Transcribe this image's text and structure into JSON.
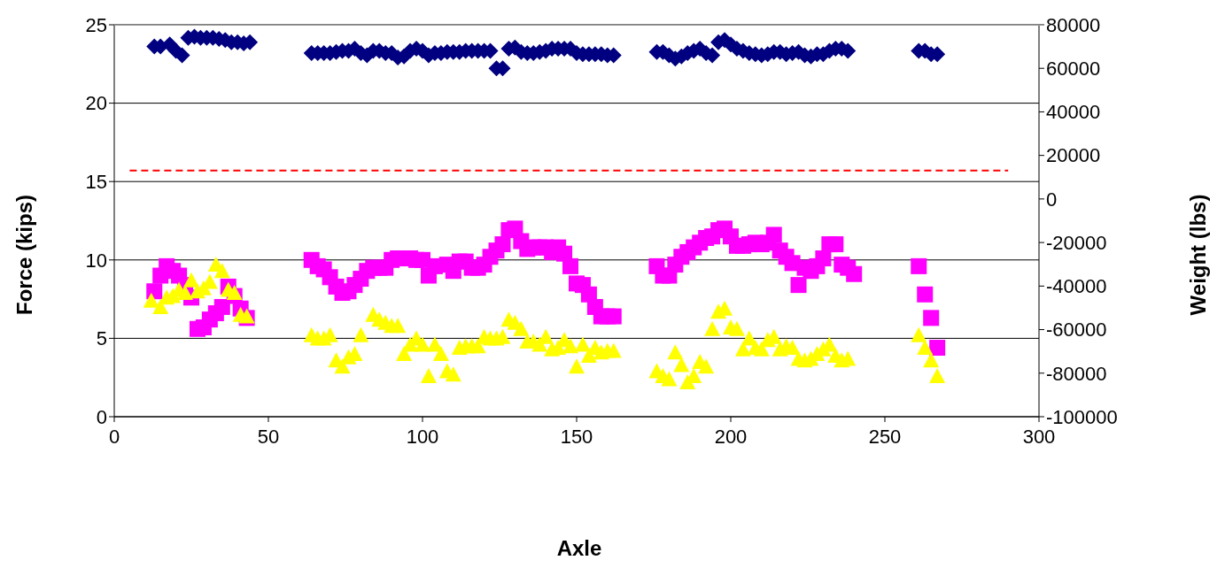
{
  "chart_data": {
    "type": "scatter",
    "xlabel": "Axle",
    "ylabel": "Force (kips)",
    "y2label": "Weight (lbs)",
    "xlim": [
      0,
      300
    ],
    "xticks": [
      0,
      50,
      100,
      150,
      200,
      250,
      300
    ],
    "ylim": [
      0,
      25
    ],
    "yticks": [
      0,
      5,
      10,
      15,
      20,
      25
    ],
    "y2lim": [
      -100000,
      80000
    ],
    "y2ticks": [
      -100000,
      -80000,
      -60000,
      -40000,
      -20000,
      0,
      20000,
      40000,
      60000,
      80000
    ],
    "grid": "y",
    "series": [
      {
        "type": "scatter",
        "axis": "y2",
        "marker": "diamond",
        "color": "#000080",
        "x": [
          13,
          15,
          18,
          20,
          22,
          24,
          26,
          28,
          30,
          32,
          34,
          36,
          38,
          40,
          42,
          44,
          64,
          66,
          68,
          70,
          72,
          74,
          76,
          78,
          80,
          82,
          84,
          86,
          88,
          90,
          92,
          94,
          96,
          98,
          100,
          102,
          104,
          106,
          108,
          110,
          112,
          114,
          116,
          118,
          120,
          122,
          124,
          126,
          128,
          130,
          132,
          134,
          136,
          138,
          140,
          142,
          144,
          146,
          148,
          150,
          152,
          154,
          156,
          158,
          160,
          162,
          176,
          178,
          180,
          182,
          184,
          186,
          188,
          190,
          192,
          194,
          196,
          198,
          200,
          202,
          204,
          206,
          208,
          210,
          212,
          214,
          216,
          218,
          220,
          222,
          224,
          226,
          228,
          230,
          232,
          234,
          236,
          238,
          261,
          263,
          265,
          267
        ],
        "values": [
          70000,
          70000,
          71000,
          68000,
          66000,
          74000,
          74500,
          74000,
          74000,
          74000,
          73500,
          73000,
          72000,
          72000,
          71500,
          72000,
          67000,
          67000,
          67000,
          67000,
          67500,
          68000,
          68000,
          69000,
          67000,
          66000,
          68000,
          68000,
          67000,
          67000,
          65000,
          65500,
          68000,
          69000,
          68000,
          66000,
          67000,
          67000,
          67500,
          67500,
          67500,
          68000,
          68000,
          68000,
          68000,
          68000,
          60000,
          60000,
          69000,
          69500,
          67500,
          67000,
          67000,
          67500,
          68000,
          69000,
          69000,
          69000,
          69000,
          67000,
          66500,
          66500,
          66500,
          66500,
          66000,
          66000,
          67500,
          67500,
          66000,
          64500,
          65500,
          67000,
          68000,
          69000,
          67000,
          66000,
          72000,
          73000,
          71000,
          69000,
          68000,
          67000,
          66500,
          66000,
          66500,
          67500,
          67500,
          66500,
          67000,
          67500,
          66000,
          65500,
          66500,
          66500,
          68000,
          69000,
          69000,
          68000,
          68000,
          68000,
          66500,
          66500
        ]
      },
      {
        "type": "scatter",
        "marker": "square",
        "color": "#ff00ff",
        "x": [
          13,
          15,
          17,
          19,
          21,
          23,
          25,
          27,
          29,
          31,
          33,
          35,
          37,
          39,
          41,
          43,
          64,
          66,
          68,
          70,
          72,
          74,
          76,
          78,
          80,
          82,
          84,
          86,
          88,
          90,
          92,
          96,
          98,
          100,
          102,
          104,
          108,
          110,
          112,
          114,
          116,
          118,
          120,
          122,
          124,
          126,
          128,
          130,
          132,
          134,
          136,
          138,
          140,
          142,
          144,
          146,
          148,
          150,
          152,
          154,
          156,
          158,
          160,
          162,
          176,
          178,
          180,
          182,
          184,
          186,
          188,
          190,
          192,
          194,
          196,
          198,
          200,
          202,
          204,
          206,
          208,
          210,
          212,
          214,
          216,
          218,
          220,
          222,
          224,
          226,
          228,
          230,
          232,
          234,
          236,
          238,
          240,
          261,
          263,
          265,
          267
        ],
        "values": [
          8.0,
          9.0,
          9.6,
          9.3,
          9.0,
          8.4,
          7.6,
          5.6,
          5.7,
          6.2,
          6.6,
          7.0,
          8.3,
          7.7,
          6.9,
          6.3,
          10.0,
          9.6,
          9.4,
          8.9,
          8.3,
          7.9,
          8.0,
          8.4,
          8.8,
          9.3,
          9.5,
          9.5,
          9.5,
          10.0,
          10.1,
          10.1,
          10.0,
          10.0,
          9.0,
          9.6,
          9.7,
          9.3,
          9.9,
          9.9,
          9.5,
          9.5,
          9.7,
          10.2,
          10.6,
          11.0,
          11.9,
          12.0,
          11.2,
          10.7,
          10.8,
          10.8,
          10.8,
          10.5,
          10.8,
          10.4,
          9.6,
          8.5,
          8.4,
          7.8,
          7.0,
          6.4,
          6.4,
          6.4,
          9.6,
          9.0,
          9.0,
          9.7,
          10.2,
          10.5,
          10.8,
          11.1,
          11.4,
          11.5,
          11.9,
          12.0,
          11.5,
          10.9,
          10.9,
          11.0,
          11.1,
          11.0,
          11.1,
          11.6,
          10.6,
          10.2,
          9.8,
          8.4,
          9.5,
          9.3,
          9.6,
          10.1,
          11.0,
          11.0,
          9.7,
          9.5,
          9.1,
          9.6,
          7.8,
          6.3,
          4.4
        ]
      },
      {
        "type": "scatter",
        "marker": "triangle",
        "color": "#ffff00",
        "x": [
          12,
          15,
          17,
          19,
          21,
          23,
          25,
          27,
          29,
          31,
          33,
          35,
          37,
          39,
          41,
          43,
          64,
          66,
          68,
          70,
          72,
          74,
          76,
          78,
          80,
          84,
          86,
          88,
          90,
          92,
          94,
          96,
          98,
          100,
          102,
          104,
          106,
          108,
          110,
          112,
          114,
          116,
          118,
          120,
          122,
          124,
          126,
          128,
          130,
          132,
          134,
          136,
          138,
          140,
          142,
          144,
          146,
          148,
          150,
          152,
          154,
          156,
          158,
          160,
          162,
          176,
          178,
          180,
          182,
          184,
          186,
          188,
          190,
          192,
          194,
          196,
          198,
          200,
          202,
          204,
          206,
          208,
          210,
          212,
          214,
          216,
          218,
          220,
          222,
          224,
          226,
          228,
          230,
          232,
          234,
          236,
          238,
          261,
          263,
          265,
          267
        ],
        "values": [
          7.4,
          7.0,
          7.6,
          7.7,
          8.1,
          7.9,
          8.7,
          8.0,
          8.2,
          8.6,
          9.7,
          9.3,
          8.1,
          7.9,
          6.5,
          6.4,
          5.2,
          5.0,
          5.0,
          5.2,
          3.6,
          3.2,
          3.8,
          4.0,
          5.2,
          6.5,
          6.2,
          6.0,
          5.8,
          5.8,
          4.0,
          4.6,
          5.0,
          4.6,
          2.6,
          4.6,
          4.0,
          2.9,
          2.7,
          4.4,
          4.5,
          4.5,
          4.5,
          5.1,
          5.0,
          5.0,
          5.1,
          6.2,
          6.0,
          5.6,
          4.8,
          4.8,
          4.6,
          5.1,
          4.3,
          4.4,
          4.9,
          4.5,
          3.2,
          4.6,
          3.9,
          4.4,
          4.1,
          4.2,
          4.2,
          2.9,
          2.6,
          2.4,
          4.1,
          3.3,
          2.2,
          2.6,
          3.5,
          3.2,
          5.6,
          6.7,
          6.9,
          5.7,
          5.6,
          4.3,
          5.0,
          4.4,
          4.3,
          4.9,
          5.1,
          4.3,
          4.5,
          4.4,
          3.7,
          3.6,
          3.7,
          4.0,
          4.3,
          4.6,
          3.9,
          3.6,
          3.7,
          5.2,
          4.4,
          3.6,
          2.6
        ]
      },
      {
        "type": "line",
        "marker": "none",
        "line_style": "dashed",
        "color": "#ff0000",
        "x": [
          5,
          290
        ],
        "values": [
          15.7,
          15.7
        ]
      }
    ]
  }
}
